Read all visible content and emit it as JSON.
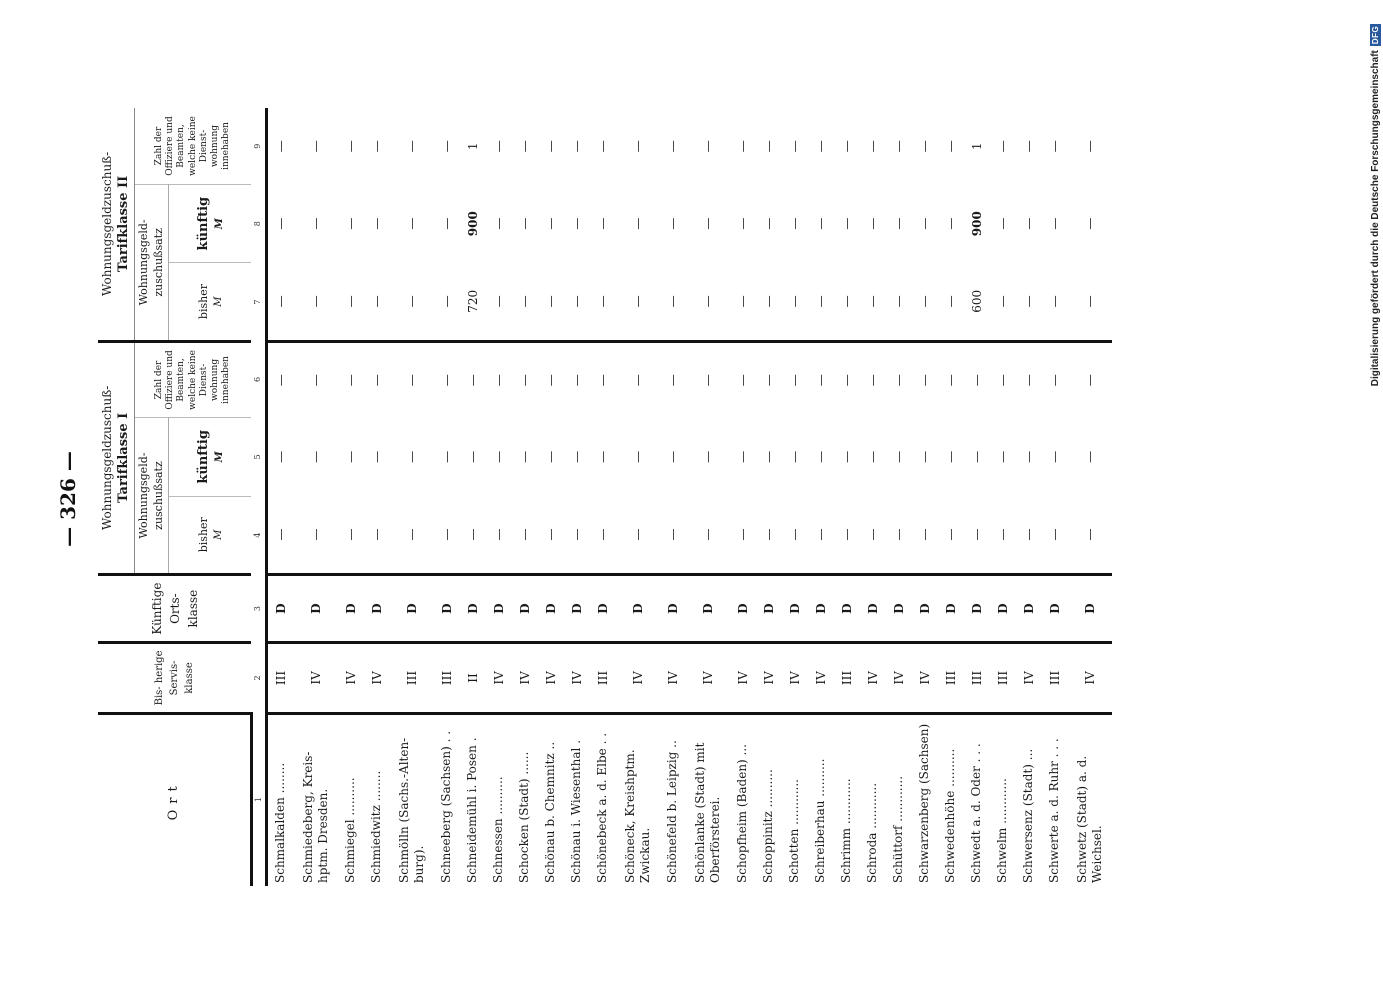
{
  "page_number": "— 326 —",
  "credit": {
    "text": "Digitalisierung gefördert durch die Deutsche Forschungsgemeinschaft",
    "logo": "DFG"
  },
  "table": {
    "headers": {
      "ort": "Ort",
      "bisherige_servisklasse": "Bis- herige Servis- klasse",
      "kuenftige_ortsklasse": "Künftige Orts- klasse",
      "group1_title": "Wohnungsgeldzuschuß-",
      "group1_subtitle": "Tarifklasse I",
      "group2_title": "Wohnungsgeldzuschuß-",
      "group2_subtitle": "Tarifklasse II",
      "zuschuss_label": "Wohnungsgeld- zuschußsatz",
      "bisher": "bisher",
      "kuenftig": "künftig",
      "unit": "M",
      "count_label": "Zahl der Offiziere und Beamten, welche keine Dienst- wohnung innehaben"
    },
    "column_numbers": [
      "1",
      "2",
      "3",
      "4",
      "5",
      "6",
      "7",
      "8",
      "9"
    ],
    "rows": [
      {
        "ort": "Schmalkalden ........",
        "cls": "III",
        "kl": "D",
        "v1": "—",
        "v2": "—",
        "v3": "—",
        "v4": "—",
        "v5": "—",
        "v6": "—"
      },
      {
        "ort": "Schmiedeberg, Kreis- hptm. Dresden.",
        "cls": "IV",
        "kl": "D",
        "v1": "—",
        "v2": "—",
        "v3": "—",
        "v4": "—",
        "v5": "—",
        "v6": "—"
      },
      {
        "ort": "Schmiegel ..........",
        "cls": "IV",
        "kl": "D",
        "v1": "—",
        "v2": "—",
        "v3": "—",
        "v4": "—",
        "v5": "—",
        "v6": "—"
      },
      {
        "ort": "Schmiedwitz ........",
        "cls": "IV",
        "kl": "D",
        "v1": "—",
        "v2": "—",
        "v3": "—",
        "v4": "—",
        "v5": "—",
        "v6": "—"
      },
      {
        "ort": "Schmölln (Sachs.-Alten- burg).",
        "cls": "III",
        "kl": "D",
        "v1": "—",
        "v2": "—",
        "v3": "—",
        "v4": "—",
        "v5": "—",
        "v6": "—"
      },
      {
        "ort": "Schneeberg (Sachsen) . .",
        "cls": "III",
        "kl": "D",
        "v1": "—",
        "v2": "—",
        "v3": "—",
        "v4": "—",
        "v5": "—",
        "v6": "—"
      },
      {
        "ort": "Schneidemühl i. Posen .",
        "cls": "II",
        "kl": "D",
        "v1": "—",
        "v2": "—",
        "v3": "—",
        "v4": "720",
        "v5": "900",
        "v6": "1"
      },
      {
        "ort": "Schnessen ..........",
        "cls": "IV",
        "kl": "D",
        "v1": "—",
        "v2": "—",
        "v3": "—",
        "v4": "—",
        "v5": "—",
        "v6": "—"
      },
      {
        "ort": "Schocken (Stadt) ......",
        "cls": "IV",
        "kl": "D",
        "v1": "—",
        "v2": "—",
        "v3": "—",
        "v4": "—",
        "v5": "—",
        "v6": "—"
      },
      {
        "ort": "Schönau b. Chemnitz ..",
        "cls": "IV",
        "kl": "D",
        "v1": "—",
        "v2": "—",
        "v3": "—",
        "v4": "—",
        "v5": "—",
        "v6": "—"
      },
      {
        "ort": "Schönau i. Wiesenthal .",
        "cls": "IV",
        "kl": "D",
        "v1": "—",
        "v2": "—",
        "v3": "—",
        "v4": "—",
        "v5": "—",
        "v6": "—"
      },
      {
        "ort": "Schönebeck a. d. Elbe . .",
        "cls": "III",
        "kl": "D",
        "v1": "—",
        "v2": "—",
        "v3": "—",
        "v4": "—",
        "v5": "—",
        "v6": "—"
      },
      {
        "ort": "Schöneck, Kreishptm. Zwickau.",
        "cls": "IV",
        "kl": "D",
        "v1": "—",
        "v2": "—",
        "v3": "—",
        "v4": "—",
        "v5": "—",
        "v6": "—"
      },
      {
        "ort": "Schönefeld b. Leipzig ..",
        "cls": "IV",
        "kl": "D",
        "v1": "—",
        "v2": "—",
        "v3": "—",
        "v4": "—",
        "v5": "—",
        "v6": "—"
      },
      {
        "ort": "Schönlanke (Stadt) mit Oberförsterei.",
        "cls": "IV",
        "kl": "D",
        "v1": "—",
        "v2": "—",
        "v3": "—",
        "v4": "—",
        "v5": "—",
        "v6": "—"
      },
      {
        "ort": "Schopfheim (Baden) ...",
        "cls": "IV",
        "kl": "D",
        "v1": "—",
        "v2": "—",
        "v3": "—",
        "v4": "—",
        "v5": "—",
        "v6": "—"
      },
      {
        "ort": "Schoppinitz ..........",
        "cls": "IV",
        "kl": "D",
        "v1": "—",
        "v2": "—",
        "v3": "—",
        "v4": "—",
        "v5": "—",
        "v6": "—"
      },
      {
        "ort": "Schotten ............",
        "cls": "IV",
        "kl": "D",
        "v1": "—",
        "v2": "—",
        "v3": "—",
        "v4": "—",
        "v5": "—",
        "v6": "—"
      },
      {
        "ort": "Schreiberhau ..........",
        "cls": "IV",
        "kl": "D",
        "v1": "—",
        "v2": "—",
        "v3": "—",
        "v4": "—",
        "v5": "—",
        "v6": "—"
      },
      {
        "ort": "Schrimm ............",
        "cls": "III",
        "kl": "D",
        "v1": "—",
        "v2": "—",
        "v3": "—",
        "v4": "—",
        "v5": "—",
        "v6": "—"
      },
      {
        "ort": "Schroda ............",
        "cls": "IV",
        "kl": "D",
        "v1": "—",
        "v2": "—",
        "v3": "—",
        "v4": "—",
        "v5": "—",
        "v6": "—"
      },
      {
        "ort": "Schüttorf ............",
        "cls": "IV",
        "kl": "D",
        "v1": "—",
        "v2": "—",
        "v3": "—",
        "v4": "—",
        "v5": "—",
        "v6": "—"
      },
      {
        "ort": "Schwarzenberg (Sachsen)",
        "cls": "IV",
        "kl": "D",
        "v1": "—",
        "v2": "—",
        "v3": "—",
        "v4": "—",
        "v5": "—",
        "v6": "—"
      },
      {
        "ort": "Schwedenhöhe ..........",
        "cls": "III",
        "kl": "D",
        "v1": "—",
        "v2": "—",
        "v3": "—",
        "v4": "—",
        "v5": "—",
        "v6": "—"
      },
      {
        "ort": "Schwedt a. d. Oder . . .",
        "cls": "III",
        "kl": "D",
        "v1": "—",
        "v2": "—",
        "v3": "—",
        "v4": "600",
        "v5": "900",
        "v6": "1"
      },
      {
        "ort": "Schwelm ............",
        "cls": "III",
        "kl": "D",
        "v1": "—",
        "v2": "—",
        "v3": "—",
        "v4": "—",
        "v5": "—",
        "v6": "—"
      },
      {
        "ort": "Schwersenz (Stadt) ...",
        "cls": "IV",
        "kl": "D",
        "v1": "—",
        "v2": "—",
        "v3": "—",
        "v4": "—",
        "v5": "—",
        "v6": "—"
      },
      {
        "ort": "Schwerte a. d. Ruhr . . .",
        "cls": "III",
        "kl": "D",
        "v1": "—",
        "v2": "—",
        "v3": "—",
        "v4": "—",
        "v5": "—",
        "v6": "—"
      },
      {
        "ort": "Schwetz (Stadt) a. d. Weichsel.",
        "cls": "IV",
        "kl": "D",
        "v1": "—",
        "v2": "—",
        "v3": "—",
        "v4": "—",
        "v5": "—",
        "v6": "—"
      }
    ]
  }
}
